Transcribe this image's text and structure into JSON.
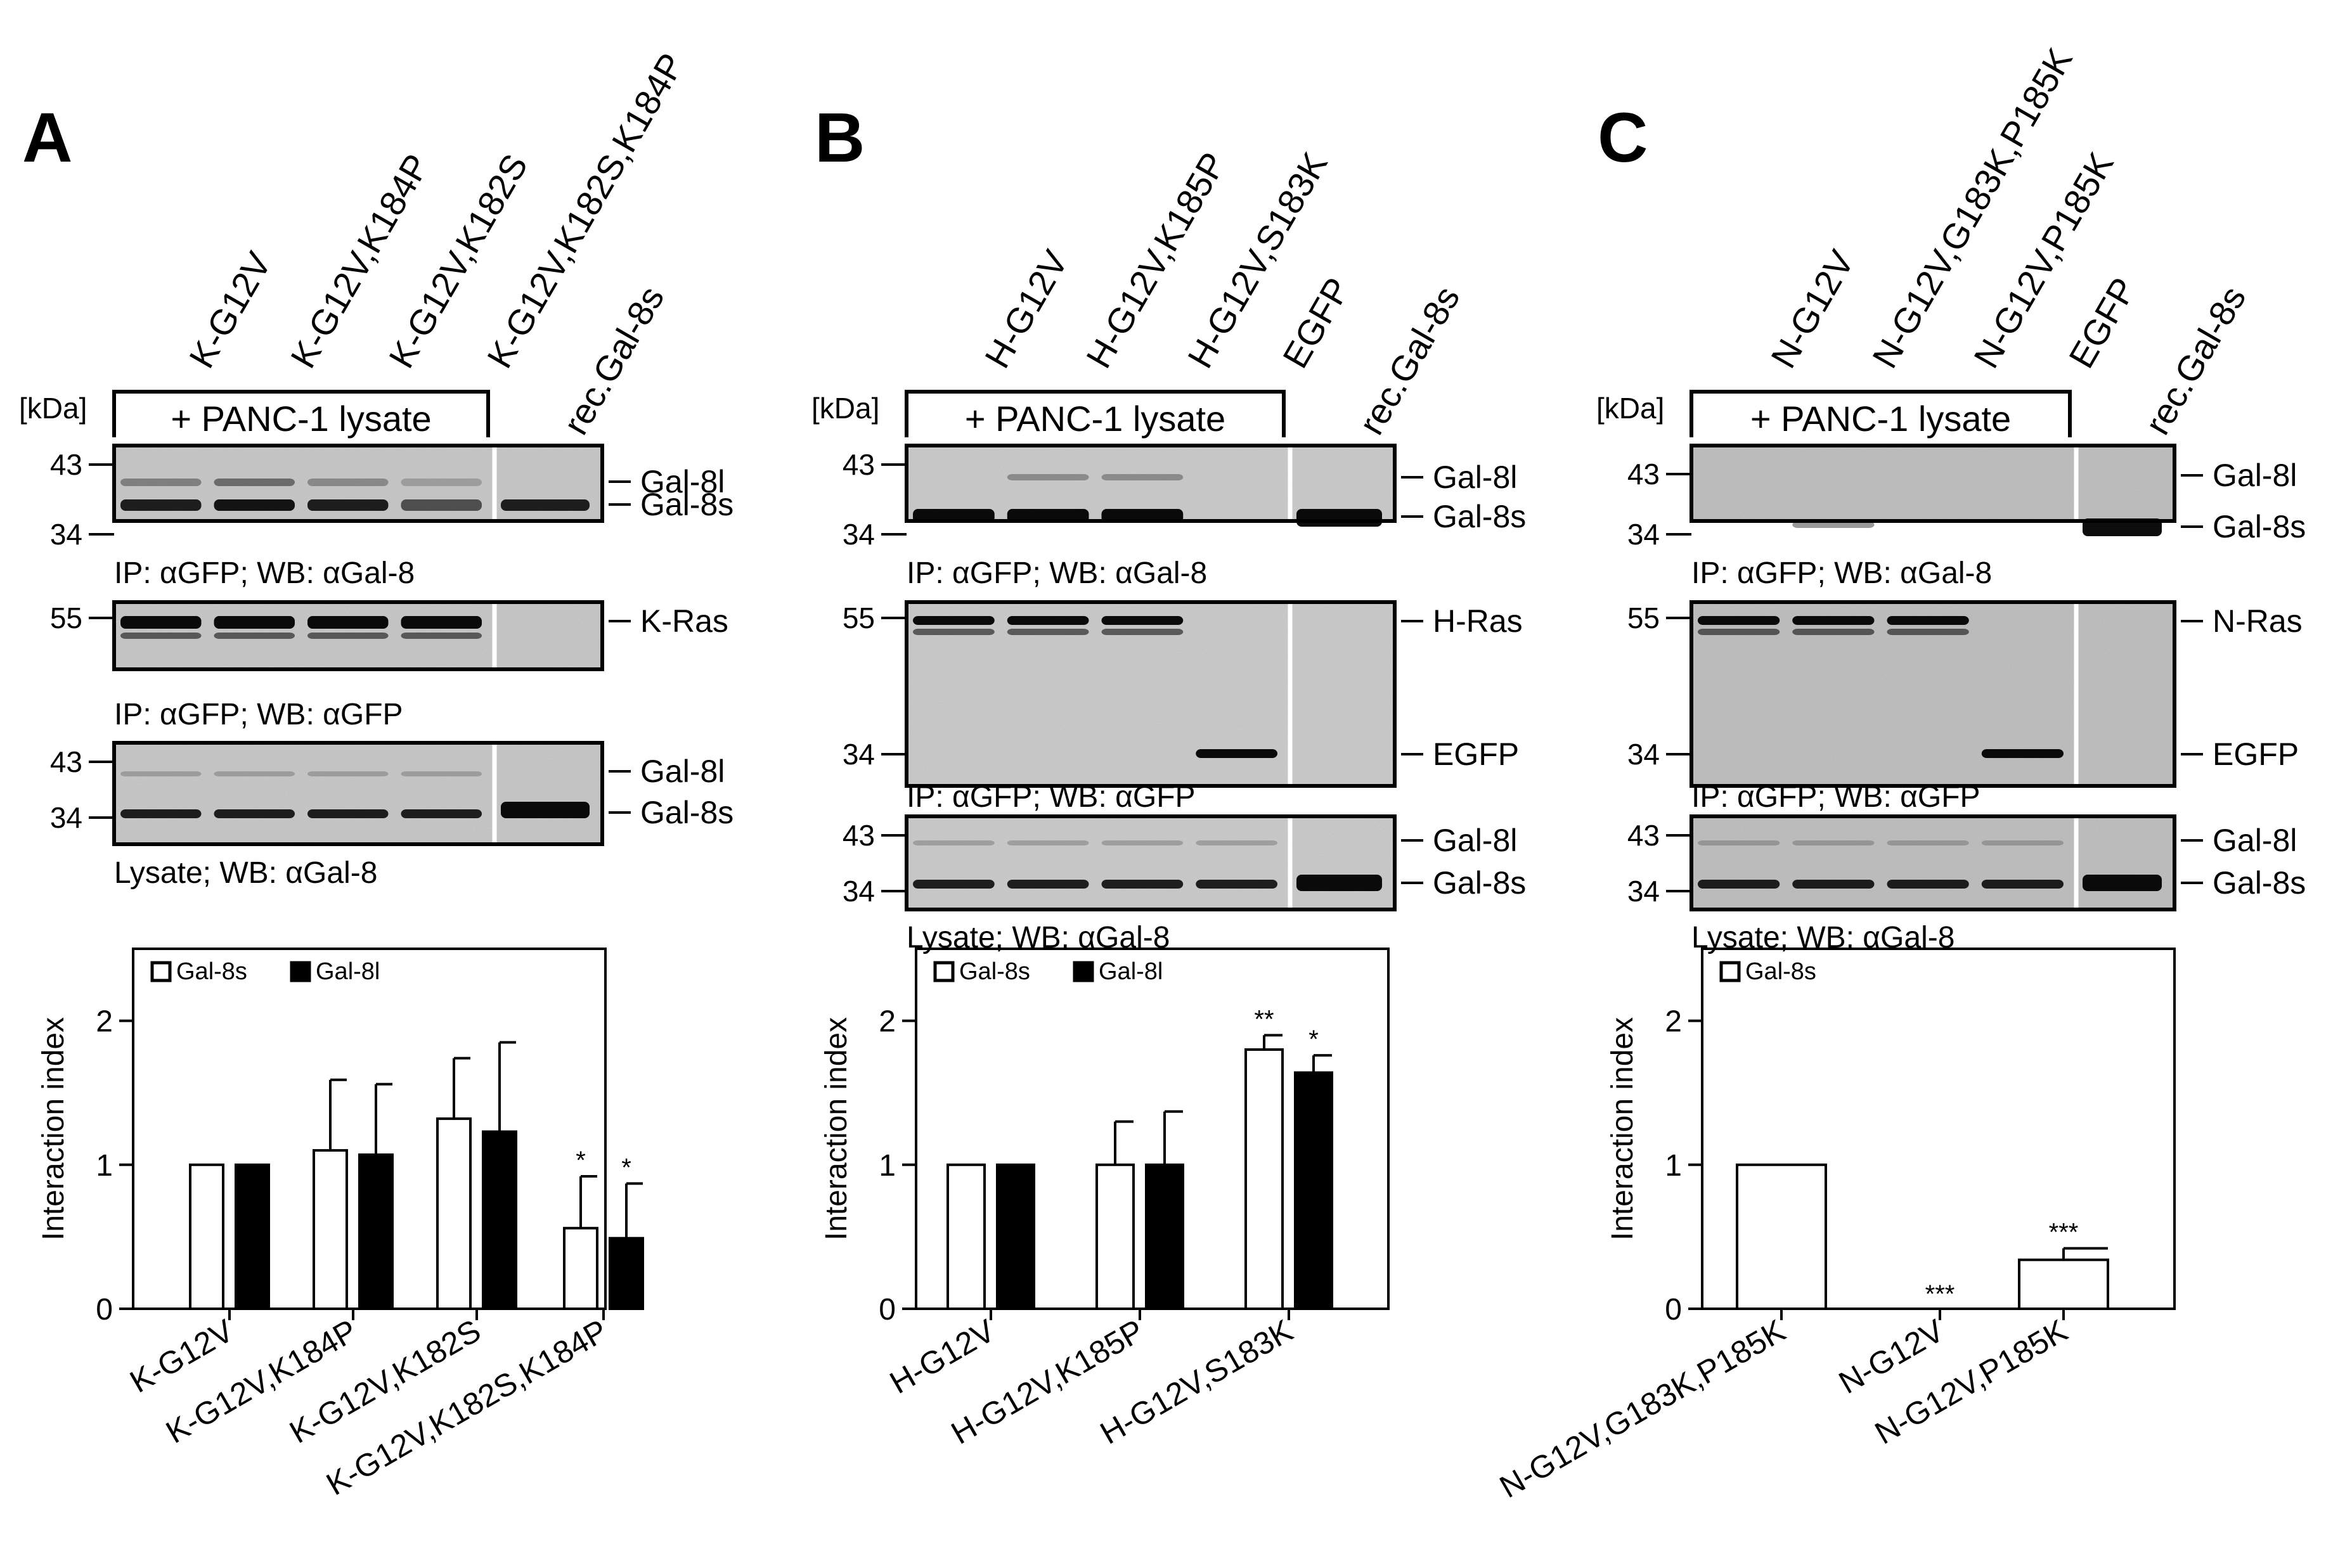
{
  "common": {
    "kda_label": "[kDa]",
    "panc_label": "+ PANC-1 lysate",
    "rec_label": "rec.Gal-8s",
    "ip_gal8_caption": "IP: αGFP; WB: αGal-8",
    "ip_gfp_caption": "IP: αGFP; WB: αGFP",
    "lysate_caption": "Lysate; WB: αGal-8",
    "band_gal8l": "Gal-8l",
    "band_gal8s": "Gal-8s",
    "band_egfp": "EGFP",
    "mw": {
      "m43": "43",
      "m34": "34",
      "m55": "55"
    }
  },
  "panels": {
    "A": {
      "letter": "A",
      "lanes": [
        "K-G12V",
        "K-G12V,K184P",
        "K-G12V,K182S",
        "K-G12V,K182S,K184P"
      ],
      "ras_band": "K-Ras"
    },
    "B": {
      "letter": "B",
      "lanes": [
        "H-G12V",
        "H-G12V,K185P",
        "H-G12V,S183K",
        "EGFP"
      ],
      "ras_band": "H-Ras"
    },
    "C": {
      "letter": "C",
      "lanes": [
        "N-G12V",
        "N-G12V,G183K,P185K",
        "N-G12V,P185K",
        "EGFP"
      ],
      "ras_band": "N-Ras"
    }
  },
  "chart_data": [
    {
      "type": "bar",
      "panel": "A",
      "ylabel": "Interaction index",
      "ylim": [
        0,
        2.5
      ],
      "yticks": [
        0,
        1,
        2
      ],
      "categories": [
        "K-G12V",
        "K-G12V,K184P",
        "K-G12V,K182S",
        "K-G12V,K182S,K184P"
      ],
      "series": [
        {
          "name": "Gal-8s",
          "color": "#ffffff",
          "values": [
            1.0,
            1.1,
            1.32,
            0.56
          ],
          "errors": [
            0,
            0.49,
            0.42,
            0.36
          ],
          "annotations": [
            "",
            "",
            "",
            "*"
          ]
        },
        {
          "name": "Gal-8l",
          "color": "#000000",
          "values": [
            1.0,
            1.07,
            1.23,
            0.49
          ],
          "errors": [
            0,
            0.49,
            0.62,
            0.38
          ],
          "annotations": [
            "",
            "",
            "",
            "*"
          ]
        }
      ],
      "legend": "top-left"
    },
    {
      "type": "bar",
      "panel": "B",
      "ylabel": "Interaction index",
      "ylim": [
        0,
        2.5
      ],
      "yticks": [
        0,
        1,
        2
      ],
      "categories": [
        "H-G12V",
        "H-G12V,K185P",
        "H-G12V,S183K"
      ],
      "series": [
        {
          "name": "Gal-8s",
          "color": "#ffffff",
          "values": [
            1.0,
            1.0,
            1.8
          ],
          "errors": [
            0,
            0.3,
            0.1
          ],
          "annotations": [
            "",
            "",
            "**"
          ]
        },
        {
          "name": "Gal-8l",
          "color": "#000000",
          "values": [
            1.0,
            1.0,
            1.64
          ],
          "errors": [
            0,
            0.37,
            0.12
          ],
          "annotations": [
            "",
            "",
            "*"
          ]
        }
      ],
      "legend": "top-left"
    },
    {
      "type": "bar",
      "panel": "C",
      "ylabel": "Interaction index",
      "ylim": [
        0,
        2.5
      ],
      "yticks": [
        0,
        1,
        2
      ],
      "categories": [
        "N-G12V,G183K,P185K",
        "N-G12V",
        "N-G12V,P185K"
      ],
      "series": [
        {
          "name": "Gal-8s",
          "color": "#ffffff",
          "values": [
            1.0,
            0.0,
            0.34
          ],
          "errors": [
            0,
            0,
            0.08
          ],
          "annotations": [
            "",
            "***",
            "***"
          ]
        }
      ],
      "legend": "top-left"
    }
  ]
}
